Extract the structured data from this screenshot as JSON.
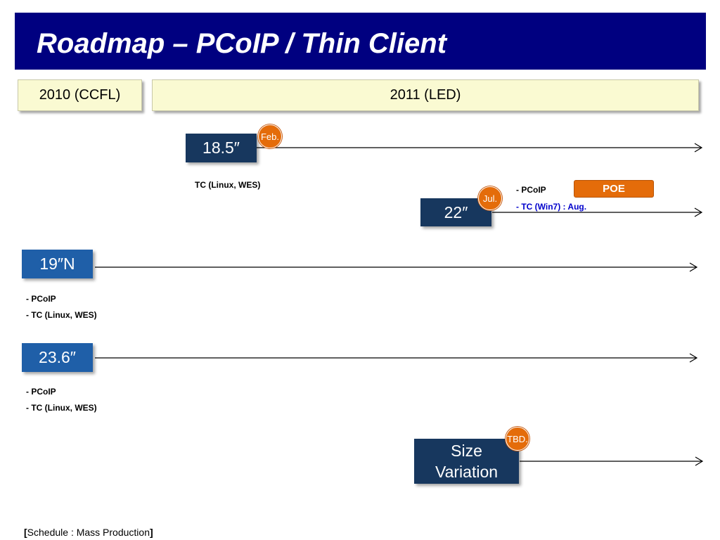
{
  "title": "Roadmap – PCoIP / Thin Client",
  "years": {
    "y2010": "2010 (CCFL)",
    "y2011": "2011 (LED)"
  },
  "rows": {
    "m185": {
      "model": "18.5″",
      "badge": "Feb.",
      "notes": [
        "TC (Linux, WES)"
      ]
    },
    "m22": {
      "model": "22″",
      "badge": "Jul.",
      "note_pcoip": "- PCoIP",
      "note_tc": "- TC (Win7) : Aug.",
      "tag": "POE"
    },
    "m19n": {
      "model": "19″N",
      "notes": [
        "- PCoIP",
        "- TC (Linux, WES)"
      ]
    },
    "m236": {
      "model": "23.6″",
      "notes": [
        "- PCoIP",
        "- TC (Linux, WES)"
      ]
    },
    "size": {
      "model_line1": "Size",
      "model_line2": "Variation",
      "badge": "TBD."
    }
  },
  "footer": {
    "open": "[",
    "text": "Schedule : Mass Production",
    "close": "]"
  },
  "colors": {
    "title_bar": "#000080",
    "year_box": "#fafad2",
    "model_box": "#17375e",
    "model_box_light": "#1f5fa8",
    "badge": "#e46c0a",
    "note_blue": "#0000cc"
  }
}
